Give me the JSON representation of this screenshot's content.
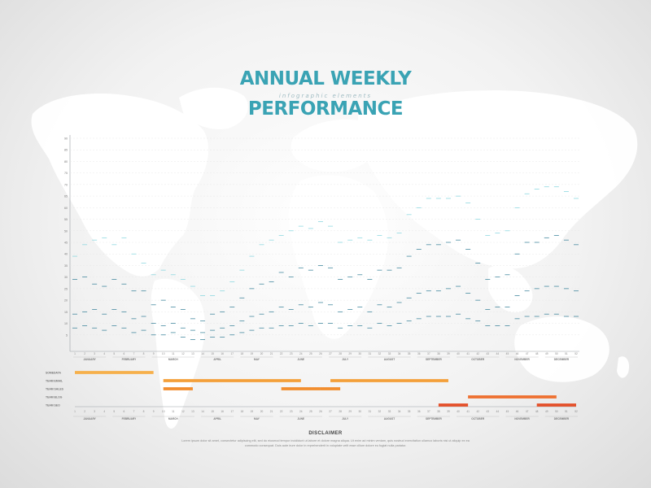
{
  "title": {
    "line1": "ANNUAL WEEKLY",
    "subtitle": "infographic elements",
    "line2": "PERFORMANCE"
  },
  "colors": {
    "bar_top": "#7fd3dd",
    "bar_bottom": "#0f3f6f",
    "axis": "#9aa0a6",
    "gantt": [
      "#f6b04b",
      "#f4a03a",
      "#f28d2e",
      "#ee7030",
      "#e4502a"
    ],
    "title": "#3aa3b4"
  },
  "chart_data": {
    "type": "bar",
    "y_ticks": [
      "5",
      "10",
      "15",
      "20",
      "25",
      "30",
      "35",
      "40",
      "45",
      "50",
      "55",
      "60",
      "65",
      "70",
      "75",
      "80",
      "85",
      "90"
    ],
    "ylim": [
      0,
      90
    ],
    "weeks": [
      "1",
      "2",
      "3",
      "4",
      "5",
      "6",
      "7",
      "8",
      "9",
      "10",
      "11",
      "12",
      "13",
      "14",
      "15",
      "16",
      "17",
      "18",
      "19",
      "20",
      "21",
      "22",
      "23",
      "24",
      "25",
      "26",
      "27",
      "28",
      "29",
      "30",
      "31",
      "32",
      "33",
      "34",
      "35",
      "36",
      "37",
      "38",
      "39",
      "40",
      "41",
      "42",
      "43",
      "44",
      "45",
      "46",
      "47",
      "48",
      "49",
      "50",
      "51",
      "52"
    ],
    "months": [
      "JANUARY",
      "FEBRUARY",
      "MARCH",
      "APRIL",
      "MAY",
      "JUNE",
      "JULY",
      "AUGUST",
      "SEPTEMBER",
      "OCTOBER",
      "NOVEMBER",
      "DECEMBER"
    ],
    "month_week_spans": [
      [
        1,
        4
      ],
      [
        5,
        8
      ],
      [
        9,
        13
      ],
      [
        14,
        17
      ],
      [
        18,
        21
      ],
      [
        22,
        26
      ],
      [
        27,
        30
      ],
      [
        31,
        35
      ],
      [
        36,
        39
      ],
      [
        40,
        44
      ],
      [
        45,
        48
      ],
      [
        49,
        52
      ]
    ],
    "series": [
      {
        "values": [
          39,
          44,
          46,
          47,
          44,
          47,
          40,
          36,
          31,
          33,
          31,
          29,
          26,
          22,
          22,
          24,
          28,
          33,
          39,
          44,
          46,
          48,
          50,
          52,
          51,
          54,
          52,
          45,
          46,
          47,
          46,
          48,
          47,
          49,
          57,
          60,
          64,
          64,
          64,
          65,
          62,
          55,
          48,
          49,
          50,
          60,
          66,
          68,
          69,
          69,
          67,
          64
        ]
      },
      {
        "values": [
          29,
          30,
          27,
          26,
          29,
          27,
          24,
          24,
          18,
          20,
          17,
          16,
          12,
          11,
          14,
          15,
          17,
          21,
          25,
          27,
          28,
          32,
          30,
          34,
          33,
          35,
          34,
          29,
          30,
          31,
          29,
          33,
          33,
          34,
          39,
          42,
          44,
          44,
          45,
          46,
          42,
          36,
          29,
          30,
          31,
          40,
          45,
          45,
          47,
          48,
          46,
          44
        ]
      },
      {
        "values": [
          14,
          15,
          16,
          14,
          16,
          15,
          12,
          13,
          10,
          9,
          10,
          8,
          7,
          6,
          7,
          8,
          9,
          11,
          13,
          14,
          15,
          17,
          16,
          18,
          17,
          19,
          18,
          15,
          16,
          17,
          15,
          18,
          17,
          19,
          21,
          23,
          24,
          24,
          25,
          26,
          23,
          20,
          16,
          17,
          17,
          22,
          24,
          25,
          26,
          26,
          25,
          24
        ]
      },
      {
        "values": [
          8,
          9,
          8,
          7,
          9,
          8,
          6,
          7,
          5,
          5,
          6,
          4,
          3,
          3,
          4,
          4,
          5,
          6,
          7,
          8,
          8,
          9,
          9,
          10,
          9,
          10,
          10,
          8,
          9,
          9,
          8,
          10,
          9,
          10,
          11,
          12,
          13,
          13,
          13,
          14,
          12,
          11,
          9,
          9,
          9,
          12,
          13,
          13,
          14,
          14,
          13,
          13
        ]
      }
    ],
    "gantt": [
      {
        "name": "SOMEDATA",
        "start": 1,
        "end": 9
      },
      {
        "name": "TEAM EMAIL",
        "start": 10,
        "end": 24
      },
      {
        "name": "TEAM EMAIL",
        "start": 27,
        "end": 39
      },
      {
        "name": "TEAM SALES",
        "start": 10,
        "end": 13
      },
      {
        "name": "TEAM SALES",
        "start": 22,
        "end": 26
      },
      {
        "name": "TEAM SALES",
        "start": 26,
        "end": 28
      },
      {
        "name": "TEAM BLOG",
        "start": 41,
        "end": 50
      },
      {
        "name": "TEAM SEO",
        "start": 38,
        "end": 41
      },
      {
        "name": "TEAM SEO",
        "start": 48,
        "end": 52
      }
    ],
    "gantt_rows": [
      "SOMEDATA",
      "TEAM EMAIL",
      "TEAM SALES",
      "TEAM BLOG",
      "TEAM SEO"
    ]
  },
  "disclaimer": {
    "title": "DISCLAIMER",
    "text": "Lorem ipsum dolor sit amet, consectetur adipiscing elit, sed do eiusmod tempor incididunt ut labore et dolore magna aliqua. Ut enim ad minim veniam, quis nostrud exercitation ullamco laboris nisi ut aliquip ex ea commodo consequat. Duis aute irure dolor in reprehenderit in voluptate velit esse cillum dolore eu fugiat nulla pariatur."
  }
}
